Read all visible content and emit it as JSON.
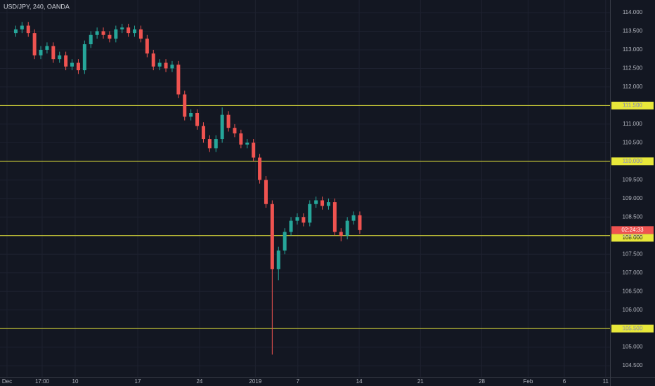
{
  "chart_data": {
    "type": "candlestick",
    "title": "USD/JPY, 240, OANDA",
    "up_color": "#26a69a",
    "down_color": "#ef5350",
    "level_color": "#e8e83a",
    "countdown": "02:24:33",
    "grid": true,
    "xlim": [
      -1.01,
      47.75
    ],
    "xticks": [
      {
        "value": -0.45,
        "label": "Dec"
      },
      {
        "value": 2.36,
        "label": "17:00"
      },
      {
        "value": 5,
        "label": "10"
      },
      {
        "value": 10,
        "label": "17"
      },
      {
        "value": 14.94,
        "label": "24"
      },
      {
        "value": 19.4,
        "label": "2019"
      },
      {
        "value": 22.8,
        "label": "7"
      },
      {
        "value": 27.7,
        "label": "14"
      },
      {
        "value": 32.6,
        "label": "21"
      },
      {
        "value": 37.5,
        "label": "28"
      },
      {
        "value": 41.2,
        "label": "Feb"
      },
      {
        "value": 44.1,
        "label": "6"
      },
      {
        "value": 47.4,
        "label": "11"
      }
    ],
    "ylim": [
      104.2,
      114.34
    ],
    "yticks": [
      {
        "value": 104.5,
        "label": "104.500"
      },
      {
        "value": 105,
        "label": "105.000"
      },
      {
        "value": 105.5,
        "label": "105.500"
      },
      {
        "value": 106,
        "label": "106.000"
      },
      {
        "value": 106.5,
        "label": "106.500"
      },
      {
        "value": 107,
        "label": "107.000"
      },
      {
        "value": 107.5,
        "label": "107.500"
      },
      {
        "value": 108,
        "label": "108.000"
      },
      {
        "value": 108.5,
        "label": "108.500"
      },
      {
        "value": 109,
        "label": "109.000"
      },
      {
        "value": 109.5,
        "label": "109.500"
      },
      {
        "value": 110,
        "label": "110.000"
      },
      {
        "value": 110.5,
        "label": "110.500"
      },
      {
        "value": 111,
        "label": "111.000"
      },
      {
        "value": 111.5,
        "label": "111.500"
      },
      {
        "value": 112,
        "label": "112.000"
      },
      {
        "value": 112.5,
        "label": "112.500"
      },
      {
        "value": 113,
        "label": "113.000"
      },
      {
        "value": 113.5,
        "label": "113.500"
      },
      {
        "value": 114,
        "label": "114.000"
      }
    ],
    "levels": [
      {
        "value": 111.5,
        "label": "111.500"
      },
      {
        "value": 110,
        "label": "110.000"
      },
      {
        "value": 108,
        "label": "108.000"
      },
      {
        "value": 105.5,
        "label": "105.500"
      }
    ],
    "x": [
      0.25,
      0.75,
      1.25,
      1.75,
      2.25,
      2.75,
      3.25,
      3.75,
      4.25,
      4.75,
      5.25,
      5.75,
      6.25,
      6.75,
      7.25,
      7.75,
      8.25,
      8.75,
      9.25,
      9.75,
      10.25,
      10.75,
      11.25,
      11.75,
      12.25,
      12.75,
      13.25,
      13.75,
      14.25,
      14.75,
      15.25,
      15.75,
      16.25,
      16.75,
      17.25,
      17.75,
      18.25,
      18.75,
      19.25,
      19.75,
      20.25,
      20.75,
      21.25,
      21.75,
      22.25,
      22.75,
      23.25,
      23.75,
      24.25,
      24.75,
      25.25,
      25.75,
      26.25,
      26.75,
      27.25,
      27.75
    ],
    "open": [
      113.45,
      113.55,
      113.65,
      113.45,
      112.85,
      113.0,
      113.1,
      112.75,
      112.85,
      112.55,
      112.65,
      112.45,
      113.15,
      113.4,
      113.5,
      113.4,
      113.3,
      113.55,
      113.6,
      113.45,
      113.55,
      113.3,
      112.9,
      112.55,
      112.65,
      112.5,
      112.6,
      111.8,
      111.2,
      111.3,
      110.95,
      110.6,
      110.35,
      110.6,
      111.25,
      110.9,
      110.75,
      110.45,
      110.5,
      110.1,
      109.5,
      108.85,
      107.1,
      107.6,
      108.1,
      108.4,
      108.5,
      108.35,
      108.85,
      108.95,
      108.8,
      108.9,
      108.1,
      108.0,
      108.4,
      108.55
    ],
    "high": [
      113.65,
      113.75,
      113.75,
      113.55,
      113.1,
      113.2,
      113.2,
      112.95,
      112.95,
      112.75,
      112.75,
      113.25,
      113.5,
      113.6,
      113.6,
      113.5,
      113.65,
      113.7,
      113.7,
      113.65,
      113.65,
      113.4,
      113.0,
      112.75,
      112.75,
      112.7,
      112.7,
      111.9,
      111.4,
      111.4,
      111.05,
      110.7,
      110.7,
      111.45,
      111.35,
      111.0,
      110.85,
      110.6,
      110.6,
      110.2,
      109.6,
      108.95,
      107.7,
      108.2,
      108.5,
      108.6,
      108.6,
      108.95,
      109.05,
      109.05,
      109.0,
      109.0,
      108.2,
      108.5,
      108.65,
      108.65
    ],
    "low": [
      113.35,
      113.45,
      113.35,
      112.75,
      112.75,
      112.9,
      112.65,
      112.65,
      112.45,
      112.45,
      112.35,
      112.35,
      113.05,
      113.3,
      113.3,
      113.2,
      113.2,
      113.45,
      113.35,
      113.35,
      113.2,
      112.8,
      112.45,
      112.45,
      112.4,
      112.4,
      111.7,
      111.1,
      111.1,
      110.85,
      110.5,
      110.25,
      110.25,
      110.5,
      110.8,
      110.65,
      110.35,
      110.35,
      110.0,
      109.4,
      108.75,
      104.8,
      106.8,
      107.5,
      108.0,
      108.3,
      108.25,
      108.25,
      108.75,
      108.7,
      108.7,
      108.0,
      107.85,
      107.9,
      108.3,
      108.05
    ],
    "close": [
      113.55,
      113.65,
      113.45,
      112.85,
      113.0,
      113.1,
      112.75,
      112.85,
      112.55,
      112.65,
      112.45,
      113.15,
      113.4,
      113.5,
      113.4,
      113.3,
      113.55,
      113.6,
      113.45,
      113.55,
      113.3,
      112.9,
      112.55,
      112.65,
      112.5,
      112.6,
      111.8,
      111.2,
      111.3,
      110.95,
      110.6,
      110.35,
      110.6,
      111.25,
      110.9,
      110.75,
      110.45,
      110.5,
      110.1,
      109.5,
      108.85,
      107.1,
      107.6,
      108.1,
      108.4,
      108.5,
      108.35,
      108.85,
      108.95,
      108.8,
      108.9,
      108.1,
      108.0,
      108.4,
      108.55,
      108.15
    ]
  }
}
